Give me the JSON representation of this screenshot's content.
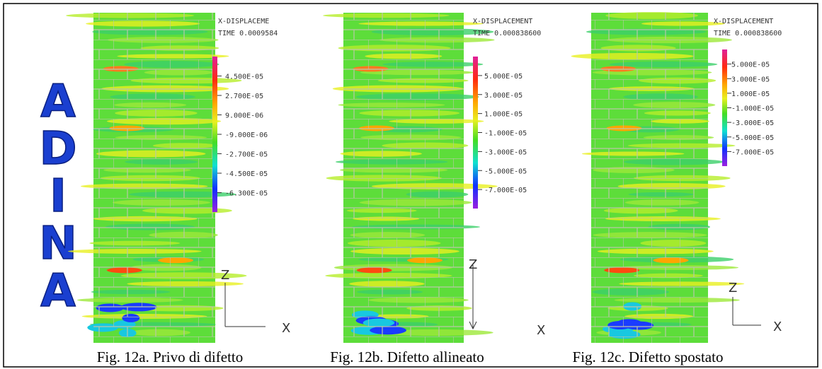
{
  "logo": [
    "A",
    "D",
    "I",
    "N",
    "A"
  ],
  "panels": [
    {
      "legend_title": "X-DISPLACEME",
      "time": "TIME 0.0009584",
      "legend_labels": [
        "4.500E-05",
        "2.700E-05",
        "9.000E-06",
        "-9.000E-06",
        "-2.700E-05",
        "-4.500E-05",
        "-6.300E-05"
      ],
      "axis_z": "Z",
      "axis_x": "X",
      "caption": "Fig. 12a. Privo di difetto"
    },
    {
      "legend_title": "X-DISPLACEMENT",
      "time": "TIME 0.000838600",
      "legend_labels": [
        "5.000E-05",
        "3.000E-05",
        "1.000E-05",
        "-1.000E-05",
        "-3.000E-05",
        "-5.000E-05",
        "-7.000E-05"
      ],
      "axis_z": "Z",
      "axis_x": "X",
      "caption": "Fig. 12b. Difetto allineato"
    },
    {
      "legend_title": "X-DISPLACEMENT",
      "time": "TIME 0.000838600",
      "legend_labels": [
        "5.000E-05",
        "3.000E-05",
        "1.000E-05",
        "-1.000E-05",
        "-3.000E-05",
        "-5.000E-05",
        "-7.000E-05"
      ],
      "axis_z": "Z",
      "axis_x": "X",
      "caption": "Fig. 12c. Difetto spostato"
    }
  ]
}
